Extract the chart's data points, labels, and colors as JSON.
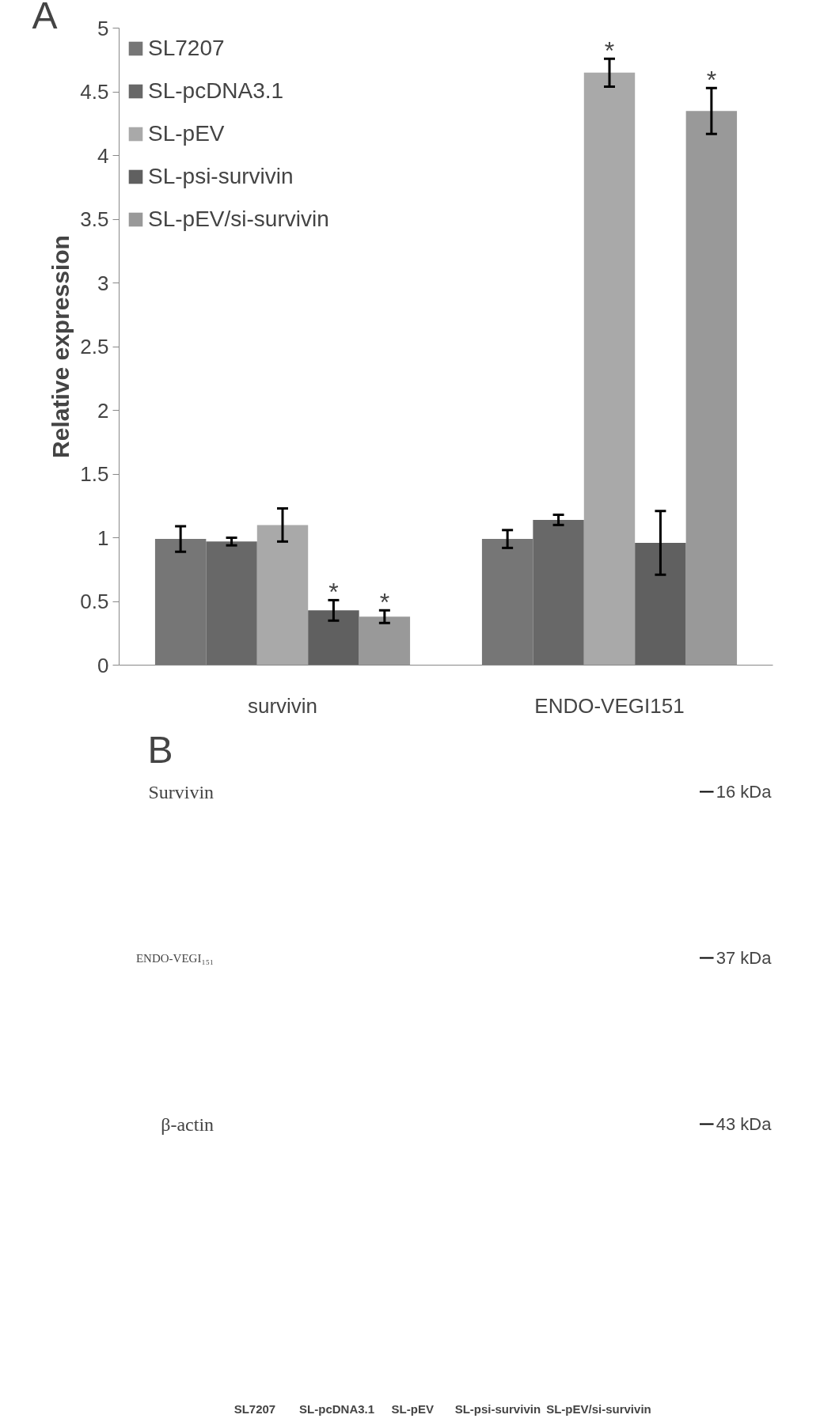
{
  "chart_data": [
    {
      "type": "bar",
      "ylabel": "Relative expression",
      "categories": [
        "survivin",
        "ENDO-VEGI151"
      ],
      "series": [
        {
          "name": "SL7207",
          "color": "#767676",
          "values": [
            0.99,
            0.99
          ],
          "errors": [
            0.1,
            0.07
          ]
        },
        {
          "name": "SL-pcDNA3.1",
          "color": "#686868",
          "values": [
            0.97,
            1.14
          ],
          "errors": [
            0.03,
            0.04
          ]
        },
        {
          "name": "SL-pEV",
          "color": "#a9a9a9",
          "values": [
            1.1,
            4.65
          ],
          "errors": [
            0.13,
            0.11
          ]
        },
        {
          "name": "SL-psi-survivin",
          "color": "#606060",
          "values": [
            0.43,
            0.96
          ],
          "errors": [
            0.08,
            0.25
          ]
        },
        {
          "name": "SL-pEV/si-survivin",
          "color": "#999999",
          "values": [
            0.38,
            4.35
          ],
          "errors": [
            0.05,
            0.18
          ]
        }
      ],
      "ylim": [
        0,
        5
      ],
      "yticks": [
        0,
        0.5,
        1,
        1.5,
        2,
        2.5,
        3,
        3.5,
        4,
        4.5,
        5
      ],
      "grid": false,
      "legend": "top left",
      "annotations": [
        "A",
        "*",
        "*",
        "*",
        "*"
      ]
    },
    {
      "type": "other",
      "annotations": [
        "B",
        "Survivin",
        "ENDO-VEGI₁₅₁",
        "β-actin",
        "16 kDa",
        "37 kDa",
        "43 kDa",
        "SL7207",
        "SL-pcDNA3.1",
        "SL-pEV",
        "SL-psi-survivin",
        "SL-pEV/si-survivin"
      ]
    }
  ]
}
